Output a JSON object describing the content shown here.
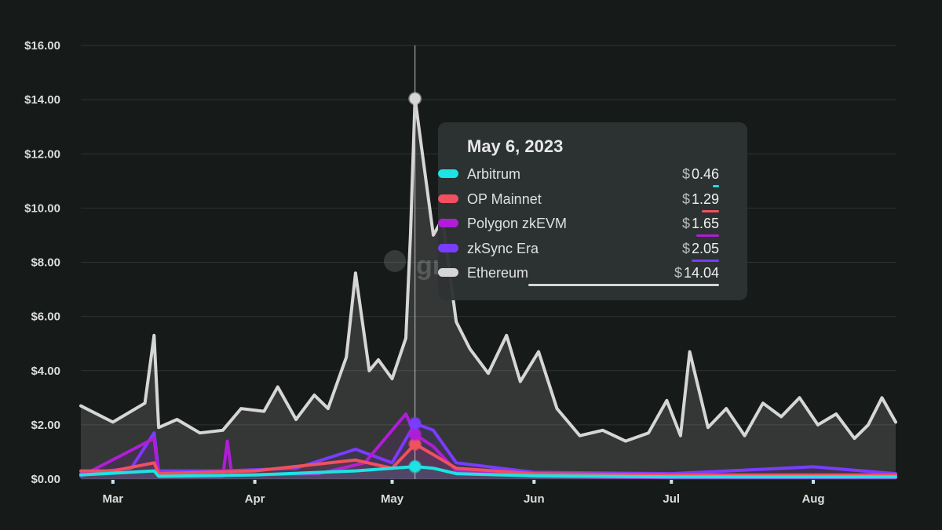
{
  "chart_data": {
    "type": "line",
    "y_axis": {
      "ticks": [
        "$0.00",
        "$2.00",
        "$4.00",
        "$6.00",
        "$8.00",
        "$10.00",
        "$12.00",
        "$14.00",
        "$16.00"
      ],
      "range": [
        0,
        16
      ],
      "grid": true
    },
    "x_axis": {
      "ticks": [
        "Mar",
        "Apr",
        "May",
        "Jun",
        "Jul",
        "Aug"
      ],
      "tick_dates": [
        "2023-03-01",
        "2023-04-01",
        "2023-05-01",
        "2023-06-01",
        "2023-07-01",
        "2023-08-01"
      ],
      "range": [
        "2023-02-22",
        "2023-08-19"
      ]
    },
    "series": [
      {
        "name": "Ethereum",
        "color": "#d6d6d6",
        "values": [
          [
            "2023-02-22",
            2.7
          ],
          [
            "2023-03-01",
            2.1
          ],
          [
            "2023-03-08",
            2.8
          ],
          [
            "2023-03-10",
            5.3
          ],
          [
            "2023-03-11",
            1.9
          ],
          [
            "2023-03-15",
            2.2
          ],
          [
            "2023-03-20",
            1.7
          ],
          [
            "2023-03-25",
            1.8
          ],
          [
            "2023-03-29",
            2.6
          ],
          [
            "2023-04-03",
            2.5
          ],
          [
            "2023-04-06",
            3.4
          ],
          [
            "2023-04-10",
            2.2
          ],
          [
            "2023-04-14",
            3.1
          ],
          [
            "2023-04-17",
            2.6
          ],
          [
            "2023-04-21",
            4.5
          ],
          [
            "2023-04-23",
            7.6
          ],
          [
            "2023-04-26",
            4.0
          ],
          [
            "2023-04-28",
            4.4
          ],
          [
            "2023-05-01",
            3.7
          ],
          [
            "2023-05-04",
            5.2
          ],
          [
            "2023-05-05",
            9.0
          ],
          [
            "2023-05-06",
            14.04
          ],
          [
            "2023-05-08",
            11.5
          ],
          [
            "2023-05-10",
            9.0
          ],
          [
            "2023-05-12",
            9.6
          ],
          [
            "2023-05-15",
            5.8
          ],
          [
            "2023-05-18",
            4.8
          ],
          [
            "2023-05-22",
            3.9
          ],
          [
            "2023-05-26",
            5.3
          ],
          [
            "2023-05-29",
            3.6
          ],
          [
            "2023-06-02",
            4.7
          ],
          [
            "2023-06-06",
            2.6
          ],
          [
            "2023-06-11",
            1.6
          ],
          [
            "2023-06-16",
            1.8
          ],
          [
            "2023-06-21",
            1.4
          ],
          [
            "2023-06-26",
            1.7
          ],
          [
            "2023-06-30",
            2.9
          ],
          [
            "2023-07-03",
            1.6
          ],
          [
            "2023-07-05",
            4.7
          ],
          [
            "2023-07-09",
            1.9
          ],
          [
            "2023-07-13",
            2.6
          ],
          [
            "2023-07-17",
            1.6
          ],
          [
            "2023-07-21",
            2.8
          ],
          [
            "2023-07-25",
            2.3
          ],
          [
            "2023-07-29",
            3.0
          ],
          [
            "2023-08-02",
            2.0
          ],
          [
            "2023-08-06",
            2.4
          ],
          [
            "2023-08-10",
            1.5
          ],
          [
            "2023-08-13",
            2.0
          ],
          [
            "2023-08-16",
            3.0
          ],
          [
            "2023-08-19",
            2.1
          ]
        ]
      },
      {
        "name": "zkSync Era",
        "color": "#7a3cff",
        "values": [
          [
            "2023-02-22",
            0.2
          ],
          [
            "2023-03-05",
            0.4
          ],
          [
            "2023-03-10",
            1.7
          ],
          [
            "2023-03-11",
            0.3
          ],
          [
            "2023-03-25",
            0.3
          ],
          [
            "2023-04-10",
            0.4
          ],
          [
            "2023-04-23",
            1.1
          ],
          [
            "2023-05-01",
            0.6
          ],
          [
            "2023-05-06",
            2.05
          ],
          [
            "2023-05-10",
            1.8
          ],
          [
            "2023-05-15",
            0.6
          ],
          [
            "2023-06-01",
            0.25
          ],
          [
            "2023-07-01",
            0.2
          ],
          [
            "2023-08-01",
            0.45
          ],
          [
            "2023-08-19",
            0.2
          ]
        ]
      },
      {
        "name": "Polygon zkEVM",
        "color": "#b01dd6",
        "values": [
          [
            "2023-02-22",
            0.1
          ],
          [
            "2023-03-10",
            1.5
          ],
          [
            "2023-03-11",
            0.1
          ],
          [
            "2023-03-25",
            0.1
          ],
          [
            "2023-03-26",
            1.4
          ],
          [
            "2023-03-27",
            0.15
          ],
          [
            "2023-04-15",
            0.2
          ],
          [
            "2023-04-25",
            0.6
          ],
          [
            "2023-05-04",
            2.4
          ],
          [
            "2023-05-06",
            1.65
          ],
          [
            "2023-05-10",
            1.2
          ],
          [
            "2023-05-15",
            0.3
          ],
          [
            "2023-06-01",
            0.1
          ],
          [
            "2023-07-01",
            0.05
          ],
          [
            "2023-08-19",
            0.05
          ]
        ]
      },
      {
        "name": "OP Mainnet",
        "color": "#f0505f",
        "values": [
          [
            "2023-02-22",
            0.3
          ],
          [
            "2023-03-01",
            0.3
          ],
          [
            "2023-03-10",
            0.6
          ],
          [
            "2023-03-11",
            0.2
          ],
          [
            "2023-04-01",
            0.3
          ],
          [
            "2023-04-23",
            0.7
          ],
          [
            "2023-05-01",
            0.4
          ],
          [
            "2023-05-06",
            1.29
          ],
          [
            "2023-05-10",
            0.9
          ],
          [
            "2023-05-15",
            0.4
          ],
          [
            "2023-06-01",
            0.2
          ],
          [
            "2023-07-01",
            0.15
          ],
          [
            "2023-08-19",
            0.15
          ]
        ]
      },
      {
        "name": "Arbitrum",
        "color": "#1de3e3",
        "values": [
          [
            "2023-02-22",
            0.15
          ],
          [
            "2023-03-10",
            0.3
          ],
          [
            "2023-03-11",
            0.1
          ],
          [
            "2023-04-01",
            0.15
          ],
          [
            "2023-04-23",
            0.3
          ],
          [
            "2023-05-06",
            0.46
          ],
          [
            "2023-05-10",
            0.4
          ],
          [
            "2023-05-15",
            0.2
          ],
          [
            "2023-06-01",
            0.12
          ],
          [
            "2023-07-01",
            0.08
          ],
          [
            "2023-08-19",
            0.08
          ]
        ]
      }
    ],
    "hover": {
      "date": "2023-05-06",
      "tooltip_title": "May 6, 2023",
      "currency": "$",
      "rows": [
        {
          "name": "Arbitrum",
          "value": "0.46",
          "color": "#1de3e3"
        },
        {
          "name": "OP Mainnet",
          "value": "1.29",
          "color": "#f0505f"
        },
        {
          "name": "Polygon zkEVM",
          "value": "1.65",
          "color": "#b01dd6"
        },
        {
          "name": "zkSync Era",
          "value": "2.05",
          "color": "#7a3cff"
        },
        {
          "name": "Ethereum",
          "value": "14.04",
          "color": "#d6d6d6"
        }
      ]
    },
    "watermark": "gr"
  }
}
